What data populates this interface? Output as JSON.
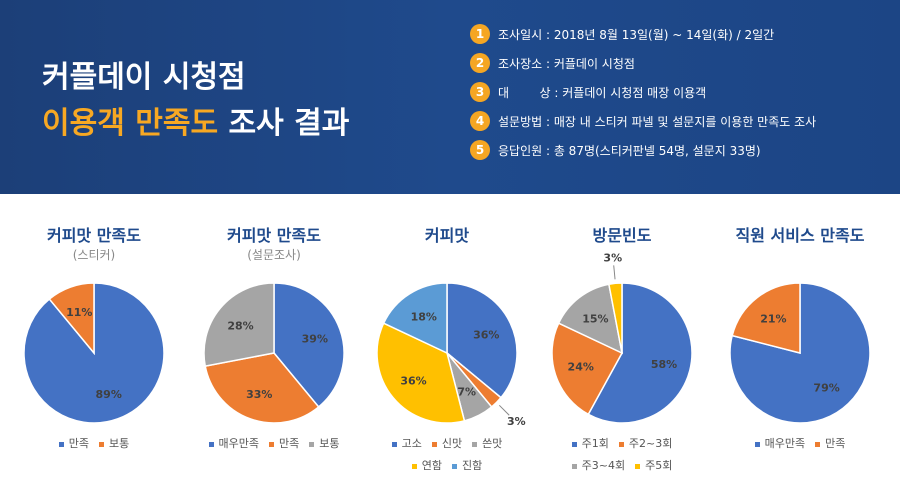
{
  "header": {
    "title_line1": "커플데이 시청점",
    "title_line2_highlight": "이용객 만족도",
    "title_line2_rest": "조사 결과",
    "accent_color": "#f7a823",
    "info": [
      {
        "num": "1",
        "text": "조사일시 : 2018년 8월 13일(월) ~ 14일(화) / 2일간"
      },
      {
        "num": "2",
        "text": "조사장소 : 커플데이 시청점"
      },
      {
        "num": "3",
        "text": "대        상 : 커플데이 시청점 매장 이용객"
      },
      {
        "num": "4",
        "text": "설문방법 : 매장 내 스티커 파넬 및 설문지를 이용한 만족도 조사"
      },
      {
        "num": "5",
        "text": "응답인원 : 총 87명(스티커판넬 54명, 설문지 33명)"
      }
    ]
  },
  "chart_data": [
    {
      "type": "pie",
      "title": "커피맛 만족도",
      "subtitle": "(스티커)",
      "categories": [
        "만족",
        "보통"
      ],
      "values": [
        89,
        11
      ],
      "labels": [
        "89%",
        "11%"
      ],
      "colors": [
        "#4472c4",
        "#ed7d31"
      ]
    },
    {
      "type": "pie",
      "title": "커피맛 만족도",
      "subtitle": "(설문조사)",
      "categories": [
        "매우만족",
        "만족",
        "보통"
      ],
      "values": [
        39,
        33,
        28
      ],
      "labels": [
        "39%",
        "33%",
        "28%"
      ],
      "colors": [
        "#4472c4",
        "#ed7d31",
        "#a5a5a5"
      ]
    },
    {
      "type": "pie",
      "title": "커피맛",
      "subtitle": "",
      "categories": [
        "고소",
        "신맛",
        "쓴맛",
        "연함",
        "진함"
      ],
      "values": [
        36,
        3,
        7,
        36,
        18
      ],
      "labels": [
        "36%",
        "3%",
        "7%",
        "36%",
        "18%"
      ],
      "colors": [
        "#4472c4",
        "#ed7d31",
        "#a5a5a5",
        "#ffc000",
        "#5b9bd5"
      ]
    },
    {
      "type": "pie",
      "title": "방문빈도",
      "subtitle": "",
      "categories": [
        "주1회",
        "주2~3회",
        "주3~4회",
        "주5회"
      ],
      "values": [
        58,
        24,
        15,
        3
      ],
      "labels": [
        "58%",
        "24%",
        "15%",
        "3%"
      ],
      "colors": [
        "#4472c4",
        "#ed7d31",
        "#a5a5a5",
        "#ffc000"
      ]
    },
    {
      "type": "pie",
      "title": "직원 서비스 만족도",
      "subtitle": "",
      "categories": [
        "매우만족",
        "만족"
      ],
      "values": [
        79,
        21
      ],
      "labels": [
        "79%",
        "21%"
      ],
      "colors": [
        "#4472c4",
        "#ed7d31"
      ]
    }
  ]
}
